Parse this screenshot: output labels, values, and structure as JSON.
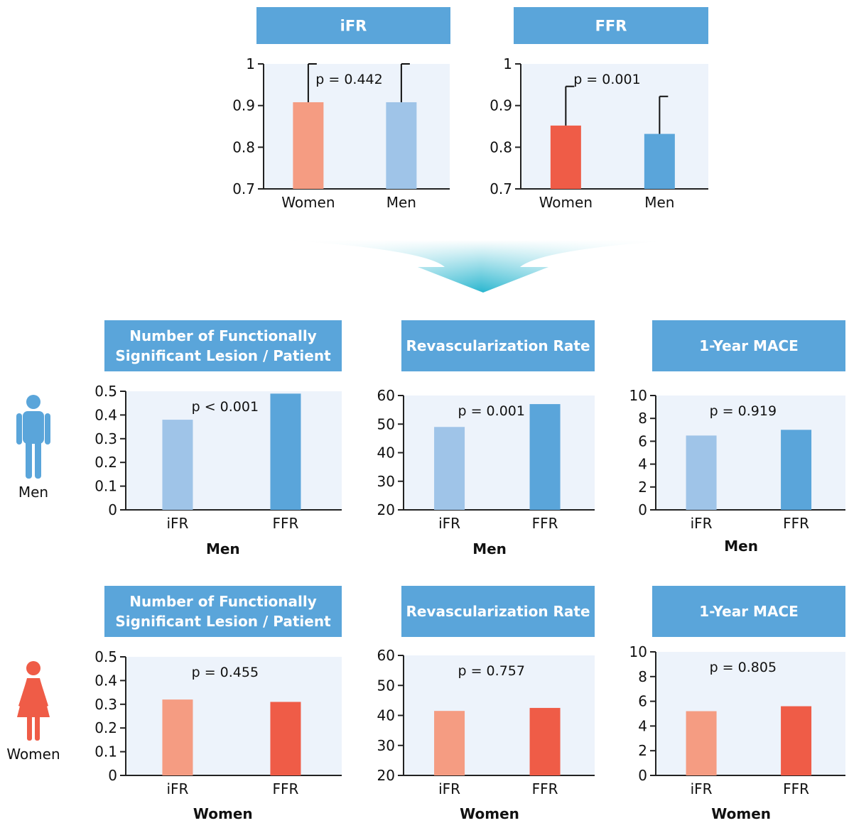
{
  "colors": {
    "header_bg": "#5aa5da",
    "plot_bg": "#edf3fb",
    "axis": "#222222",
    "women_light": "#f59c82",
    "women_dark": "#ef5c47",
    "men_light": "#9fc4e8",
    "men_dark": "#5aa5da",
    "arrow": "#29b6cf"
  },
  "legend": {
    "men_label": "Men",
    "women_label": "Women"
  },
  "chart_data": [
    {
      "id": "ifr-top",
      "type": "bar",
      "title": "iFR",
      "categories": [
        "Women",
        "Men"
      ],
      "values": [
        0.908,
        0.908
      ],
      "error_upper": [
        1.0,
        1.0
      ],
      "colors": [
        "women_light",
        "men_light"
      ],
      "ylim": [
        0.7,
        1
      ],
      "yticks": [
        "0.7",
        "0.8",
        "0.9",
        "1"
      ],
      "tick_values": [
        0.7,
        0.8,
        0.9,
        1.0
      ],
      "p_value": "p = 0.442",
      "xlabel": ""
    },
    {
      "id": "ffr-top",
      "type": "bar",
      "title": "FFR",
      "categories": [
        "Women",
        "Men"
      ],
      "values": [
        0.852,
        0.832
      ],
      "error_upper": [
        0.946,
        0.922
      ],
      "colors": [
        "women_dark",
        "men_dark"
      ],
      "ylim": [
        0.7,
        1
      ],
      "yticks": [
        "0.7",
        "0.8",
        "0.9",
        "1"
      ],
      "tick_values": [
        0.7,
        0.8,
        0.9,
        1.0
      ],
      "p_value": "p = 0.001",
      "xlabel": ""
    },
    {
      "id": "men-lesion",
      "type": "bar",
      "title": [
        "Number of Functionally",
        "Significant Lesion / Patient"
      ],
      "categories": [
        "iFR",
        "FFR"
      ],
      "values": [
        0.38,
        0.49
      ],
      "colors": [
        "men_light",
        "men_dark"
      ],
      "ylim": [
        0,
        0.5
      ],
      "yticks": [
        "0",
        "0.1",
        "0.2",
        "0.3",
        "0.4",
        "0.5"
      ],
      "tick_values": [
        0,
        0.1,
        0.2,
        0.3,
        0.4,
        0.5
      ],
      "p_value": "p < 0.001",
      "xlabel": "Men"
    },
    {
      "id": "men-revasc",
      "type": "bar",
      "title": [
        "Revascularization Rate"
      ],
      "categories": [
        "iFR",
        "FFR"
      ],
      "values": [
        49.0,
        57.0
      ],
      "colors": [
        "men_light",
        "men_dark"
      ],
      "ylim": [
        20,
        60
      ],
      "yticks": [
        "20",
        "30",
        "40",
        "50",
        "60"
      ],
      "tick_values": [
        20,
        30,
        40,
        50,
        60
      ],
      "p_value": "p = 0.001",
      "xlabel": "Men"
    },
    {
      "id": "men-mace",
      "type": "bar",
      "title": [
        "1-Year MACE"
      ],
      "categories": [
        "iFR",
        "FFR"
      ],
      "values": [
        6.5,
        7.0
      ],
      "colors": [
        "men_light",
        "men_dark"
      ],
      "ylim": [
        0,
        10
      ],
      "yticks": [
        "0",
        "2",
        "4",
        "6",
        "8",
        "10"
      ],
      "tick_values": [
        0,
        2,
        4,
        6,
        8,
        10
      ],
      "p_value": "p = 0.919",
      "xlabel": "Men"
    },
    {
      "id": "women-lesion",
      "type": "bar",
      "title": [
        "Number of Functionally",
        "Significant Lesion / Patient"
      ],
      "categories": [
        "iFR",
        "FFR"
      ],
      "values": [
        0.32,
        0.31
      ],
      "colors": [
        "women_light",
        "women_dark"
      ],
      "ylim": [
        0,
        0.5
      ],
      "yticks": [
        "0",
        "0.1",
        "0.2",
        "0.3",
        "0.4",
        "0.5"
      ],
      "tick_values": [
        0,
        0.1,
        0.2,
        0.3,
        0.4,
        0.5
      ],
      "p_value": "p = 0.455",
      "xlabel": "Women"
    },
    {
      "id": "women-revasc",
      "type": "bar",
      "title": [
        "Revascularization Rate"
      ],
      "categories": [
        "iFR",
        "FFR"
      ],
      "values": [
        41.5,
        42.5
      ],
      "colors": [
        "women_light",
        "women_dark"
      ],
      "ylim": [
        20,
        60
      ],
      "yticks": [
        "20",
        "30",
        "40",
        "50",
        "60"
      ],
      "tick_values": [
        20,
        30,
        40,
        50,
        60
      ],
      "p_value": "p = 0.757",
      "xlabel": "Women"
    },
    {
      "id": "women-mace",
      "type": "bar",
      "title": [
        "1-Year MACE"
      ],
      "categories": [
        "iFR",
        "FFR"
      ],
      "values": [
        5.2,
        5.6
      ],
      "colors": [
        "women_light",
        "women_dark"
      ],
      "ylim": [
        0,
        10
      ],
      "yticks": [
        "0",
        "2",
        "4",
        "6",
        "8",
        "10"
      ],
      "tick_values": [
        0,
        2,
        4,
        6,
        8,
        10
      ],
      "p_value": "p = 0.805",
      "xlabel": "Women"
    }
  ]
}
